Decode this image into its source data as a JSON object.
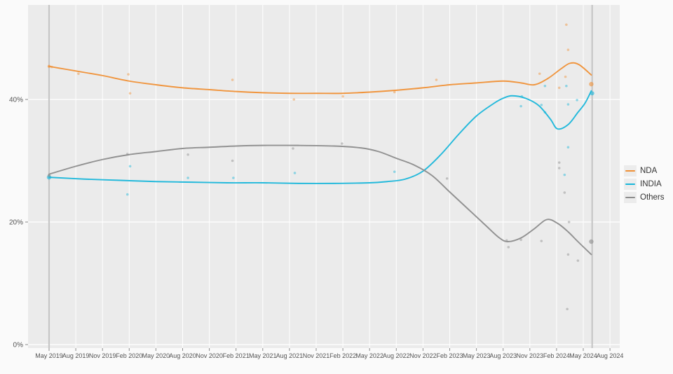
{
  "page": {
    "background": "#fafafa",
    "panel_background": "#ebebeb",
    "gridline_color": "#ffffff",
    "axis_text_color": "#555555",
    "reference_line_color": "#c6c6c6"
  },
  "chart_data": {
    "type": "line",
    "title": "",
    "xlabel": "",
    "ylabel": "",
    "grid": true,
    "legend_position": "right",
    "x_unit_note": "x values are months elapsed since May 2019 (0 = May 2019, 61 = Jun 2024)",
    "x_tick_labels": [
      "May 2019",
      "Aug 2019",
      "Nov 2019",
      "Feb 2020",
      "May 2020",
      "Aug 2020",
      "Nov 2020",
      "Feb 2021",
      "May 2021",
      "Aug 2021",
      "Nov 2021",
      "Feb 2022",
      "May 2022",
      "Aug 2022",
      "Nov 2022",
      "Feb 2023",
      "May 2023",
      "Aug 2023",
      "Nov 2023",
      "Feb 2024",
      "May 2024",
      "Aug 2024"
    ],
    "y_tick_labels": [
      "0%",
      "20%",
      "40%"
    ],
    "y_ticks": [
      0,
      20,
      40
    ],
    "ylim": [
      -0.6,
      55.4
    ],
    "reference_lines_x_months": [
      0,
      61
    ],
    "series": [
      {
        "name": "NDA",
        "color": "#f09035",
        "smoothed_line": [
          [
            0,
            45.4
          ],
          [
            2,
            44.9
          ],
          [
            4,
            44.4
          ],
          [
            6,
            43.9
          ],
          [
            9,
            43.0
          ],
          [
            12,
            42.4
          ],
          [
            15,
            41.9
          ],
          [
            18,
            41.6
          ],
          [
            21,
            41.3
          ],
          [
            24,
            41.1
          ],
          [
            27,
            41.0
          ],
          [
            30,
            41.0
          ],
          [
            33,
            41.0
          ],
          [
            36,
            41.2
          ],
          [
            39,
            41.5
          ],
          [
            42,
            41.9
          ],
          [
            45,
            42.4
          ],
          [
            48,
            42.7
          ],
          [
            51,
            43.0
          ],
          [
            53,
            42.7
          ],
          [
            54.5,
            42.4
          ],
          [
            56,
            43.4
          ],
          [
            57.5,
            45.0
          ],
          [
            58.5,
            45.9
          ],
          [
            59.5,
            45.7
          ],
          [
            60.9,
            44.0
          ]
        ],
        "poll_points": [
          [
            0.3,
            45.3
          ],
          [
            3.3,
            44.2
          ],
          [
            8.9,
            44.1
          ],
          [
            9.1,
            41.0
          ],
          [
            20.6,
            43.2
          ],
          [
            27.5,
            40.0
          ],
          [
            33,
            40.5
          ],
          [
            38.8,
            41.2
          ],
          [
            43.5,
            43.2
          ],
          [
            55.1,
            44.2
          ],
          [
            57.3,
            41.9
          ],
          [
            58,
            43.7
          ],
          [
            58.1,
            52.2
          ],
          [
            58.3,
            48.1
          ]
        ],
        "marker_points": [
          [
            0,
            45.4,
            2.2
          ],
          [
            60.9,
            42.5,
            3.2
          ]
        ]
      },
      {
        "name": "INDIA",
        "color": "#18b6da",
        "smoothed_line": [
          [
            0,
            27.3
          ],
          [
            4,
            27.0
          ],
          [
            8,
            26.8
          ],
          [
            12,
            26.6
          ],
          [
            16,
            26.5
          ],
          [
            20,
            26.4
          ],
          [
            24,
            26.4
          ],
          [
            28,
            26.3
          ],
          [
            32,
            26.3
          ],
          [
            36,
            26.4
          ],
          [
            38,
            26.6
          ],
          [
            40,
            27.0
          ],
          [
            42,
            28.3
          ],
          [
            44,
            31.0
          ],
          [
            46,
            34.3
          ],
          [
            48,
            37.3
          ],
          [
            50,
            39.4
          ],
          [
            51,
            40.2
          ],
          [
            52,
            40.6
          ],
          [
            53.5,
            40.2
          ],
          [
            55,
            39.0
          ],
          [
            56.3,
            36.8
          ],
          [
            57.1,
            35.2
          ],
          [
            58.3,
            35.9
          ],
          [
            59.4,
            37.9
          ],
          [
            60.2,
            39.4
          ],
          [
            60.9,
            41.4
          ]
        ],
        "poll_points": [
          [
            8.8,
            24.5
          ],
          [
            9.1,
            29.1
          ],
          [
            15.6,
            27.2
          ],
          [
            20.7,
            27.2
          ],
          [
            27.6,
            28.0
          ],
          [
            38.8,
            28.2
          ],
          [
            53,
            38.9
          ],
          [
            53.1,
            40.5
          ],
          [
            55.3,
            39.1
          ],
          [
            55.7,
            37.9
          ],
          [
            55.7,
            42.2
          ],
          [
            57.9,
            27.7
          ],
          [
            58.1,
            42.2
          ],
          [
            58.3,
            39.2
          ],
          [
            58.3,
            32.2
          ],
          [
            59.3,
            39.9
          ]
        ],
        "marker_points": [
          [
            0,
            27.3,
            3.2
          ],
          [
            61,
            41.0,
            3.0
          ]
        ]
      },
      {
        "name": "Others",
        "color": "#8c8c8c",
        "smoothed_line": [
          [
            0,
            27.8
          ],
          [
            3,
            29.1
          ],
          [
            6,
            30.2
          ],
          [
            9,
            31.0
          ],
          [
            12,
            31.5
          ],
          [
            15,
            32.0
          ],
          [
            18,
            32.2
          ],
          [
            21,
            32.4
          ],
          [
            24,
            32.5
          ],
          [
            28,
            32.5
          ],
          [
            32,
            32.4
          ],
          [
            35,
            32.1
          ],
          [
            37,
            31.5
          ],
          [
            39,
            30.4
          ],
          [
            41,
            29.3
          ],
          [
            43,
            27.6
          ],
          [
            45,
            24.9
          ],
          [
            47,
            22.2
          ],
          [
            49,
            19.5
          ],
          [
            50.5,
            17.5
          ],
          [
            51.5,
            16.8
          ],
          [
            53,
            17.4
          ],
          [
            54.5,
            18.9
          ],
          [
            55.9,
            20.4
          ],
          [
            57.1,
            19.8
          ],
          [
            58.3,
            18.4
          ],
          [
            59.4,
            16.8
          ],
          [
            60.9,
            14.7
          ]
        ],
        "poll_points": [
          [
            8.8,
            31.1
          ],
          [
            15.6,
            31.0
          ],
          [
            20.6,
            30.0
          ],
          [
            27.4,
            32.0
          ],
          [
            32.9,
            32.8
          ],
          [
            44.7,
            27.1
          ],
          [
            51.4,
            17.0
          ],
          [
            51.6,
            15.9
          ],
          [
            53,
            17.1
          ],
          [
            55.3,
            16.9
          ],
          [
            57.3,
            29.7
          ],
          [
            57.3,
            28.8
          ],
          [
            57.9,
            24.8
          ],
          [
            58.2,
            5.8
          ],
          [
            58.3,
            14.7
          ],
          [
            58.4,
            20.0
          ],
          [
            59.4,
            13.7
          ]
        ],
        "marker_points": [
          [
            0,
            27.6,
            2.2
          ],
          [
            60.9,
            16.8,
            3.2
          ]
        ]
      }
    ]
  }
}
